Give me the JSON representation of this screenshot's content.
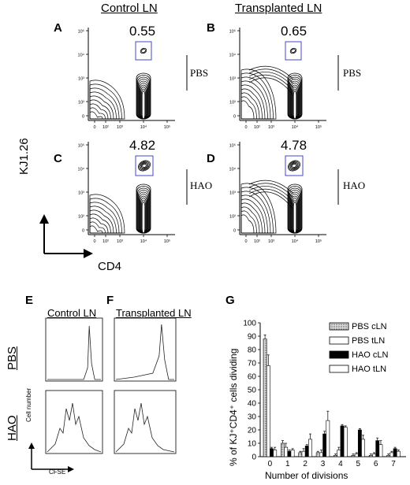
{
  "top": {
    "col_headers": [
      "Control LN",
      "Transplanted LN"
    ],
    "panel_letters": [
      "A",
      "B",
      "C",
      "D"
    ],
    "gate_values": [
      "0.55",
      "0.65",
      "4.82",
      "4.78"
    ],
    "row_labels": [
      "PBS",
      "HAO"
    ],
    "y_axis_label": "KJ1.26",
    "x_axis_label": "CD4",
    "y_ticks": [
      "10⁵",
      "10⁴",
      "10³",
      "10²",
      "0"
    ],
    "x_ticks": [
      "0",
      "10²",
      "10³",
      "10⁴",
      "10⁵"
    ]
  },
  "hist": {
    "panel_letters": [
      "E",
      "F"
    ],
    "col_headers": [
      "Control LN",
      "Transplanted LN"
    ],
    "row_labels": [
      "PBS",
      "HAO"
    ],
    "y_axis_label": "Cell number",
    "x_axis_label": "CFSE"
  },
  "chart_data": {
    "type": "bar",
    "panel_letter": "G",
    "categories": [
      "0",
      "1",
      "2",
      "3",
      "4",
      "5",
      "6",
      "7"
    ],
    "xlabel": "Number of divisions",
    "ylabel": "% of KJ⁺CD4⁺ cells dividing",
    "ylim": [
      0,
      100
    ],
    "yticks": [
      0,
      10,
      20,
      30,
      40,
      50,
      60,
      70,
      80,
      90,
      100
    ],
    "legend_position": "top-right",
    "series": [
      {
        "name": "PBS cLN",
        "fill": "dotted",
        "values": [
          88,
          10,
          3,
          3,
          1,
          1,
          1,
          1
        ],
        "errors": [
          3,
          2,
          1,
          1,
          1,
          1,
          1,
          1
        ]
      },
      {
        "name": "PBS tLN",
        "fill": "#ffffff",
        "values": [
          68,
          7,
          4,
          3,
          5,
          2,
          2,
          3
        ],
        "errors": [
          8,
          3,
          2,
          2,
          2,
          1,
          1,
          1
        ]
      },
      {
        "name": "HAO cLN",
        "fill": "#000000",
        "values": [
          6,
          4,
          8,
          17,
          23,
          20,
          12,
          6
        ],
        "errors": [
          1,
          1,
          1,
          2,
          1,
          1,
          2,
          1
        ]
      },
      {
        "name": "HAO tLN",
        "fill": "#ffffff",
        "values": [
          5,
          5,
          13,
          27,
          22,
          13,
          9,
          4
        ],
        "errors": [
          2,
          1,
          4,
          7,
          1,
          3,
          3,
          1
        ]
      }
    ]
  }
}
